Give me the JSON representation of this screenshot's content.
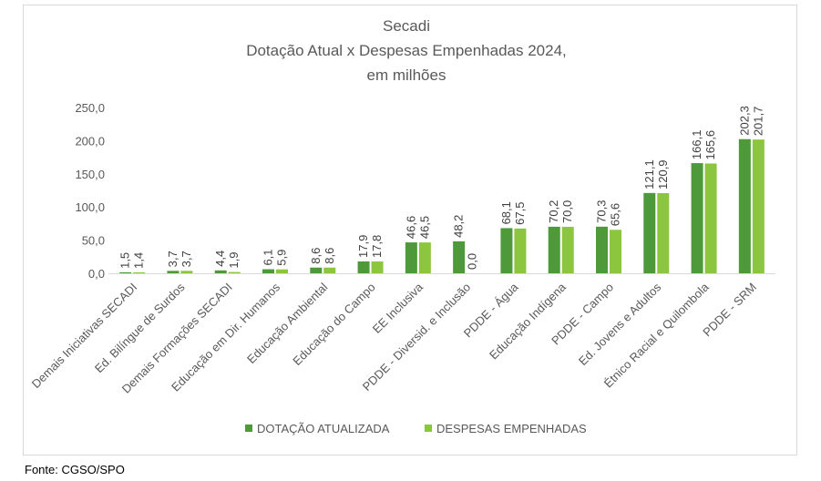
{
  "chart_data": {
    "type": "bar",
    "title_lines": [
      "Secadi",
      "Dotação Atual x Despesas Empenhadas 2024,",
      "em milhões"
    ],
    "categories": [
      "Demais Iniciativas SECADI",
      "Ed. Bilíngue de Surdos",
      "Demais Formações SECADI",
      "Educação em Dir. Humanos",
      "Educação Ambiental",
      "Educação do Campo",
      "EE Inclusiva",
      "PDDE - Diversid. e Inclusão",
      "PDDE - Água",
      "Educação Indígena",
      "PDDE - Campo",
      "Ed. Jovens e Adultos",
      "Étnico Racial e Quilombola",
      "PDDE - SRM"
    ],
    "series": [
      {
        "name": "DOTAÇÃO ATUALIZADA",
        "color": "#4e9a3a",
        "values": [
          1.5,
          3.7,
          4.4,
          6.1,
          8.6,
          17.9,
          46.6,
          48.2,
          68.1,
          70.2,
          70.3,
          121.1,
          166.1,
          202.3
        ],
        "labels": [
          "1,5",
          "3,7",
          "4,4",
          "6,1",
          "8,6",
          "17,9",
          "46,6",
          "48,2",
          "68,1",
          "70,2",
          "70,3",
          "121,1",
          "166,1",
          "202,3"
        ]
      },
      {
        "name": "DESPESAS EMPENHADAS",
        "color": "#8cc63f",
        "values": [
          1.4,
          3.7,
          1.9,
          5.9,
          8.6,
          17.8,
          46.5,
          0.0,
          67.5,
          70.0,
          65.6,
          120.9,
          165.6,
          201.7
        ],
        "labels": [
          "1,4",
          "3,7",
          "1,9",
          "5,9",
          "8,6",
          "17,8",
          "46,5",
          "0,0",
          "67,5",
          "70,0",
          "65,6",
          "120,9",
          "165,6",
          "201,7"
        ]
      }
    ],
    "y_ticks": [
      0,
      50,
      100,
      150,
      200,
      250
    ],
    "y_tick_labels": [
      "0,0",
      "50,0",
      "100,0",
      "150,0",
      "200,0",
      "250,0"
    ],
    "ylim": [
      0,
      250
    ],
    "grid": false,
    "legend_position": "bottom"
  },
  "source_text": "Fonte: CGSO/SPO"
}
